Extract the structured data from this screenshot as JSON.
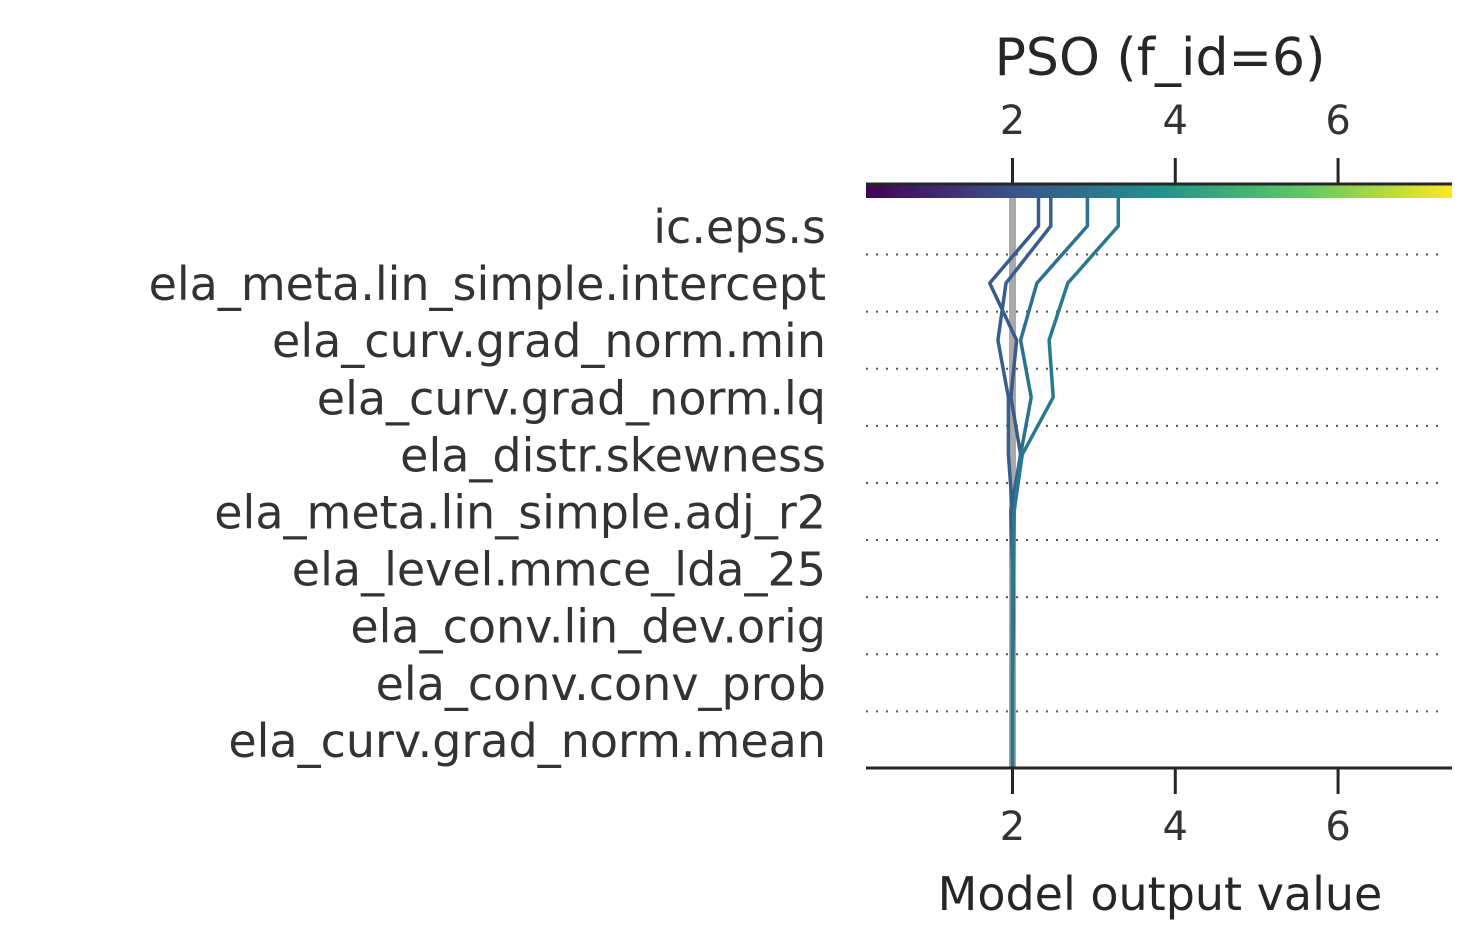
{
  "chart_data": {
    "type": "line",
    "chart_kind": "shap-decision-plot",
    "title": "PSO (f_id=6)",
    "xlabel": "Model output value",
    "xlim": [
      0.2,
      7.4
    ],
    "base_value": 2.0,
    "x_ticks": [
      "2",
      "4",
      "6"
    ],
    "x_tick_values": [
      2,
      4,
      6
    ],
    "features": [
      "ic.eps.s",
      "ela_meta.lin_simple.intercept",
      "ela_curv.grad_norm.min",
      "ela_curv.grad_norm.lq",
      "ela_distr.skewness",
      "ela_meta.lin_simple.adj_r2",
      "ela_level.mmce_lda_25",
      "ela_conv.lin_dev.orig",
      "ela_conv.conv_prob",
      "ela_curv.grad_norm.mean"
    ],
    "colormap": "viridis",
    "colormap_stops": [
      "#440154",
      "#3b528b",
      "#21918c",
      "#5ec962",
      "#fde725"
    ],
    "series": [
      {
        "color": "#3b5a8c",
        "values": [
          2.0,
          2.0,
          2.0,
          2.0,
          1.98,
          2.1,
          1.98,
          2.05,
          1.72,
          2.32
        ]
      },
      {
        "color": "#365f8d",
        "values": [
          2.0,
          2.0,
          2.01,
          2.01,
          2.0,
          1.95,
          1.95,
          1.82,
          1.92,
          2.47
        ]
      },
      {
        "color": "#2c728e",
        "values": [
          2.0,
          2.0,
          2.0,
          2.01,
          2.02,
          2.1,
          2.23,
          2.1,
          2.3,
          2.92
        ]
      },
      {
        "color": "#29798e",
        "values": [
          2.0,
          2.0,
          2.0,
          2.0,
          2.02,
          2.12,
          2.5,
          2.45,
          2.68,
          3.3
        ]
      }
    ]
  }
}
